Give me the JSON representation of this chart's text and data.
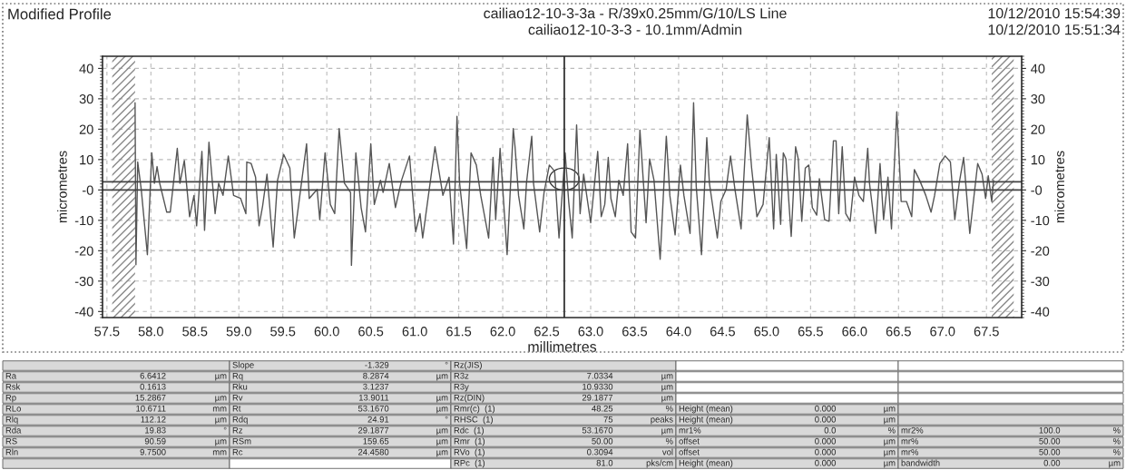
{
  "chart_data": {
    "type": "line",
    "title": "Modified Profile",
    "xlabel": "millimetres",
    "ylabel": "micrometres",
    "y2label": "micrometres",
    "annotations": [
      "cailiao12-10-3-3a - R/39x0.25mm/G/10/LS Line",
      "cailiao12-10-3-3 - 10.1mm/Admin",
      "10/12/2010 15:54:39",
      "10/12/2010 15:51:34",
      "Slope",
      "-1.329",
      "°",
      "Rz(JIS)",
      "Ra",
      "6.6412",
      "µm",
      "Rq",
      "8.2874",
      "µm",
      "R3z",
      "7.0334",
      "µm",
      "Rsk",
      "0.1613",
      "Rku",
      "3.1237",
      "R3y",
      "10.9330",
      "µm",
      "Rp",
      "15.2867",
      "µm",
      "Rv",
      "13.9011",
      "µm",
      "Rz(DIN)",
      "29.1877",
      "µm",
      "RLo",
      "10.6711",
      "mm",
      "Rt",
      "53.1670",
      "µm",
      "Rmr(c)  (1)",
      "48.25",
      "%",
      "Height (mean)",
      "0.000",
      "µm",
      "Rlq",
      "112.12",
      "µm",
      "Rdq",
      "24.91",
      "°",
      "RHSC  (1)",
      "75",
      "peaks",
      "Height (mean)",
      "0.000",
      "µm",
      "Rda",
      "19.83",
      "°",
      "Rz",
      "29.1877",
      "µm",
      "Rdc  (1)",
      "53.1670",
      "µm",
      "mr1%",
      "0.0",
      "%",
      "mr2%",
      "100.0",
      "%",
      "RS",
      "90.59",
      "µm",
      "RSm",
      "159.65",
      "µm",
      "Rmr  (1)",
      "50.00",
      "%",
      "offset",
      "0.000",
      "µm",
      "mr%",
      "50.00",
      "%",
      "Rln",
      "9.7500",
      "mm",
      "Rc",
      "24.4580",
      "µm",
      "RVo  (1)",
      "0.3094",
      "vol",
      "offset",
      "0.000",
      "µm",
      "mr%",
      "50.00",
      "%",
      "RPc  (1)",
      "81.0",
      "pks/cm",
      "Height (mean)",
      "0.000",
      "µm",
      "bandwidth",
      "0.00",
      "µm"
    ],
    "series": [
      {
        "color": "#555555",
        "x": [
          57.82,
          57.83,
          57.85,
          57.89,
          57.96,
          58.01,
          58.04,
          58.07,
          58.1,
          58.18,
          58.22,
          58.3,
          58.33,
          58.38,
          58.44,
          58.49,
          58.52,
          58.58,
          58.61,
          58.66,
          58.7,
          58.73,
          58.77,
          58.82,
          58.88,
          58.94,
          59.02,
          59.08,
          59.09,
          59.14,
          59.19,
          59.23,
          59.27,
          59.32,
          59.39,
          59.44,
          59.51,
          59.58,
          59.63,
          59.68,
          59.77,
          59.8,
          59.89,
          59.92,
          59.98,
          60.04,
          60.09,
          60.14,
          60.2,
          60.27,
          60.28,
          60.33,
          60.39,
          60.44,
          60.5,
          60.54,
          60.61,
          60.64,
          60.71,
          60.78,
          60.85,
          60.94,
          61.01,
          61.06,
          61.09,
          61.23,
          61.32,
          61.39,
          61.44,
          61.48,
          61.51,
          61.59,
          61.64,
          61.7,
          61.75,
          61.84,
          61.89,
          61.92,
          61.97,
          62.05,
          62.12,
          62.14,
          62.18,
          62.24,
          62.27,
          62.33,
          62.35,
          62.42,
          62.47,
          62.53,
          62.59,
          62.64,
          62.71,
          62.75,
          62.79,
          62.84,
          62.88,
          62.92,
          63.0,
          63.08,
          63.12,
          63.16,
          63.2,
          63.23,
          63.28,
          63.32,
          63.37,
          63.42,
          63.46,
          63.51,
          63.56,
          63.63,
          63.67,
          63.72,
          63.79,
          63.86,
          63.9,
          63.96,
          64.02,
          64.06,
          64.13,
          64.17,
          64.2,
          64.26,
          64.32,
          64.35,
          64.44,
          64.48,
          64.54,
          64.59,
          64.64,
          64.71,
          64.78,
          64.83,
          64.89,
          64.96,
          65.03,
          65.08,
          65.11,
          65.16,
          65.19,
          65.22,
          65.28,
          65.33,
          65.36,
          65.4,
          65.44,
          65.48,
          65.52,
          65.57,
          65.6,
          65.66,
          65.71,
          65.76,
          65.79,
          65.82,
          65.86,
          65.9,
          65.95,
          66.0,
          66.05,
          66.1,
          66.15,
          66.17,
          66.24,
          66.29,
          66.33,
          66.38,
          66.42,
          66.48,
          66.5,
          66.53,
          66.59,
          66.65,
          66.68,
          66.74,
          66.81,
          66.87,
          66.91,
          66.97,
          67.03,
          67.09,
          67.14,
          67.19,
          67.24,
          67.31,
          67.4,
          67.45,
          67.49,
          67.52,
          67.56,
          67.58
        ],
        "values": [
          28.7,
          -24.6,
          9.2,
          0.2,
          -21.3,
          12.2,
          2.2,
          7.7,
          2.2,
          -7.3,
          -7.3,
          13.7,
          2.2,
          9.7,
          -8.8,
          -1.8,
          -11.8,
          12.7,
          -13.3,
          15.7,
          2.2,
          -7.8,
          2.2,
          -1.8,
          11.2,
          -1.8,
          -2.8,
          -7.8,
          9.2,
          8.7,
          4.2,
          -11.8,
          -5.3,
          5.2,
          -18.8,
          3.2,
          11.7,
          7.2,
          -15.8,
          -4.8,
          15.2,
          -2.8,
          0.2,
          -9.8,
          12.2,
          -4.8,
          -7.8,
          20.2,
          2.2,
          -0.8,
          -24.8,
          12.2,
          -5.8,
          -13.8,
          15.2,
          -4.8,
          3.2,
          -0.8,
          8.7,
          -5.8,
          3.2,
          11.2,
          -13.8,
          -7.8,
          -15.8,
          14.2,
          -1.8,
          4.2,
          -17.8,
          24.2,
          2.2,
          -19.3,
          12.2,
          8.2,
          -1.8,
          -15.8,
          10.7,
          -9.8,
          13.7,
          -21.3,
          20.2,
          14.2,
          -1.8,
          -12.8,
          2.2,
          17.7,
          2.2,
          -13.8,
          -0.8,
          8.2,
          6.2,
          -15.8,
          12.2,
          -3.8,
          -15.8,
          21.4,
          -7.8,
          5.2,
          -10.8,
          12.7,
          -8.8,
          -4.8,
          10.7,
          -2.8,
          -8.8,
          3.2,
          -1.8,
          15.2,
          -13.8,
          -15.8,
          19.7,
          -10.8,
          10.2,
          3.2,
          -22.8,
          17.7,
          -1.8,
          -14.8,
          8.2,
          -1.8,
          -14.3,
          28.7,
          1.2,
          -21.3,
          17.2,
          2.2,
          -15.8,
          -3.8,
          0.2,
          11.2,
          0.2,
          -12.8,
          24.7,
          7.2,
          -8.8,
          -4.8,
          17.2,
          -12.8,
          11.7,
          -11.3,
          12.2,
          10.2,
          -15.3,
          14.2,
          10.2,
          -10.3,
          7.2,
          8.2,
          -5.8,
          -8.3,
          3.7,
          -9.8,
          -10.3,
          16.2,
          16.2,
          -7.8,
          14.2,
          -7.8,
          -10.3,
          4.2,
          -1.8,
          -3.8,
          13.7,
          2.2,
          -14.3,
          8.7,
          -9.8,
          4.2,
          -12.8,
          25.7,
          15.2,
          -3.8,
          -3.8,
          -8.8,
          6.7,
          3.2,
          -1.8,
          -7.3,
          -1.8,
          8.7,
          11.2,
          9.2,
          -9.8,
          2.2,
          10.7,
          -14.3,
          8.7,
          5.2,
          -2.8,
          4.7,
          -3.8,
          3.2
        ]
      }
    ],
    "xlim": [
      57.45,
      67.9
    ],
    "ylim": [
      -42,
      44
    ],
    "y2lim": [
      -42,
      44
    ],
    "xticks": [
      {
        "value": 57.5,
        "label": "57.5"
      },
      {
        "value": 58.0,
        "label": "58.0"
      },
      {
        "value": 58.5,
        "label": "58.5"
      },
      {
        "value": 59.0,
        "label": "59.0"
      },
      {
        "value": 59.5,
        "label": "59.5"
      },
      {
        "value": 60.0,
        "label": "60.0"
      },
      {
        "value": 60.5,
        "label": "60.5"
      },
      {
        "value": 61.0,
        "label": "61.0"
      },
      {
        "value": 61.5,
        "label": "61.5"
      },
      {
        "value": 62.0,
        "label": "62.0"
      },
      {
        "value": 62.5,
        "label": "62.5"
      },
      {
        "value": 63.0,
        "label": "63.0"
      },
      {
        "value": 63.5,
        "label": "63.5"
      },
      {
        "value": 64.0,
        "label": "64.0"
      },
      {
        "value": 64.5,
        "label": "64.5"
      },
      {
        "value": 65.0,
        "label": "65.0"
      },
      {
        "value": 65.5,
        "label": "65.5"
      },
      {
        "value": 66.0,
        "label": "66.0"
      },
      {
        "value": 66.5,
        "label": "66.5"
      },
      {
        "value": 67.0,
        "label": "67.0"
      },
      {
        "value": 67.5,
        "label": "67.5"
      }
    ],
    "yticks": [
      -40,
      -30,
      -20,
      -10,
      {
        "value": 0,
        "label": "-0"
      },
      10,
      20,
      30,
      40
    ],
    "y2ticks": [
      -40,
      -30,
      -20,
      -10,
      {
        "value": 0,
        "label": "-0"
      },
      10,
      20,
      30,
      40
    ],
    "grid": true,
    "legend": false,
    "marker": "none",
    "line_style": "solid",
    "ref_lines": [
      {
        "axis": "y",
        "value": 0,
        "color": "#444444"
      },
      {
        "axis": "y",
        "value": 2.7,
        "color": "#444444"
      },
      {
        "axis": "x",
        "value": 62.7,
        "color": "#333333"
      }
    ],
    "bands": [
      {
        "axis": "x",
        "from": 57.56,
        "to": 57.82,
        "color": "#888888"
      },
      {
        "axis": "x",
        "from": 67.56,
        "to": 67.81,
        "color": "#888888"
      }
    ]
  }
}
